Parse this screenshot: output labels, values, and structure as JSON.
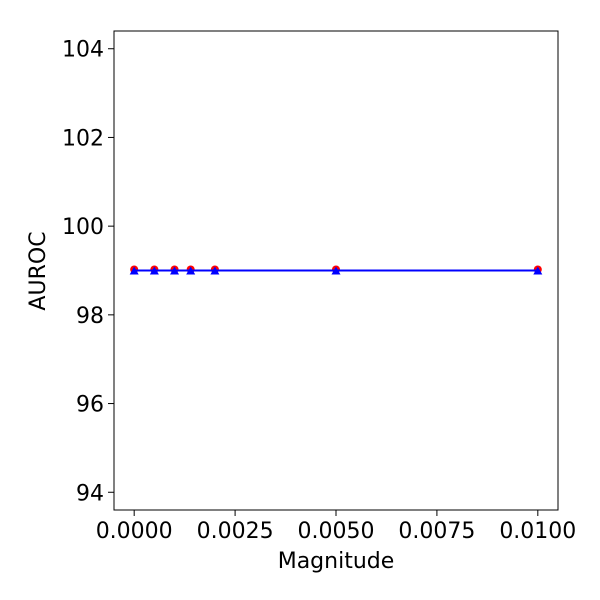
{
  "chart_data": {
    "type": "line",
    "title": "",
    "xlabel": "Magnitude",
    "ylabel": "AUROC",
    "xlim": [
      -0.0005,
      0.0105
    ],
    "ylim": [
      93.6,
      104.4
    ],
    "xticks": [
      0.0,
      0.0025,
      0.005,
      0.0075,
      0.01
    ],
    "xtick_labels": [
      "0.0000",
      "0.0025",
      "0.0050",
      "0.0075",
      "0.0100"
    ],
    "yticks": [
      94,
      96,
      98,
      100,
      102,
      104
    ],
    "ytick_labels": [
      "94",
      "96",
      "98",
      "100",
      "102",
      "104"
    ],
    "grid": false,
    "legend": "none",
    "x": [
      0.0,
      0.0005,
      0.001,
      0.0014,
      0.002,
      0.005,
      0.01
    ],
    "series": [
      {
        "values": [
          99.0,
          99.0,
          99.0,
          99.0,
          99.0,
          99.0,
          99.0
        ],
        "color": "#ff0000",
        "marker": "circle",
        "line": false
      },
      {
        "values": [
          99.0,
          99.0,
          99.0,
          99.0,
          99.0,
          99.0,
          99.0
        ],
        "color": "#0000ff",
        "marker": "triangle",
        "line": true
      }
    ]
  }
}
